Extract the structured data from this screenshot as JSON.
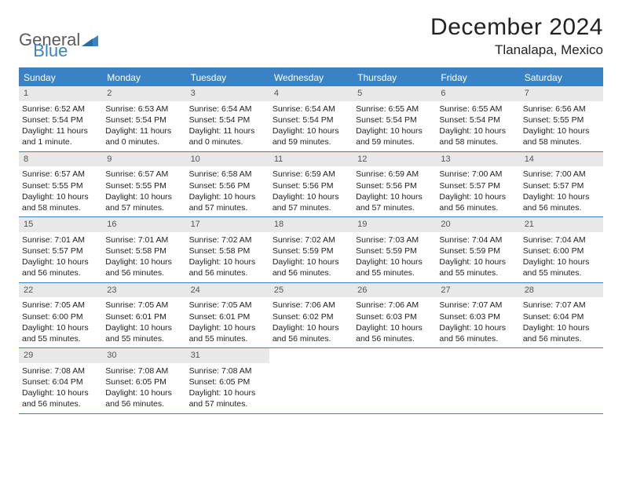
{
  "logo": {
    "word1": "General",
    "word2": "Blue"
  },
  "title": "December 2024",
  "location": "Tlanalapa, Mexico",
  "colors": {
    "accent": "#3b82c4",
    "daynum_bg": "#e8e8e8",
    "text": "#222222",
    "logo_gray": "#5a5a5a"
  },
  "fonts": {
    "title_size": 30,
    "location_size": 17,
    "weekday_size": 12,
    "cell_size": 10.5
  },
  "weekdays": [
    "Sunday",
    "Monday",
    "Tuesday",
    "Wednesday",
    "Thursday",
    "Friday",
    "Saturday"
  ],
  "days": [
    {
      "n": 1,
      "sunrise": "6:52 AM",
      "sunset": "5:54 PM",
      "daylight": "11 hours and 1 minute."
    },
    {
      "n": 2,
      "sunrise": "6:53 AM",
      "sunset": "5:54 PM",
      "daylight": "11 hours and 0 minutes."
    },
    {
      "n": 3,
      "sunrise": "6:54 AM",
      "sunset": "5:54 PM",
      "daylight": "11 hours and 0 minutes."
    },
    {
      "n": 4,
      "sunrise": "6:54 AM",
      "sunset": "5:54 PM",
      "daylight": "10 hours and 59 minutes."
    },
    {
      "n": 5,
      "sunrise": "6:55 AM",
      "sunset": "5:54 PM",
      "daylight": "10 hours and 59 minutes."
    },
    {
      "n": 6,
      "sunrise": "6:55 AM",
      "sunset": "5:54 PM",
      "daylight": "10 hours and 58 minutes."
    },
    {
      "n": 7,
      "sunrise": "6:56 AM",
      "sunset": "5:55 PM",
      "daylight": "10 hours and 58 minutes."
    },
    {
      "n": 8,
      "sunrise": "6:57 AM",
      "sunset": "5:55 PM",
      "daylight": "10 hours and 58 minutes."
    },
    {
      "n": 9,
      "sunrise": "6:57 AM",
      "sunset": "5:55 PM",
      "daylight": "10 hours and 57 minutes."
    },
    {
      "n": 10,
      "sunrise": "6:58 AM",
      "sunset": "5:56 PM",
      "daylight": "10 hours and 57 minutes."
    },
    {
      "n": 11,
      "sunrise": "6:59 AM",
      "sunset": "5:56 PM",
      "daylight": "10 hours and 57 minutes."
    },
    {
      "n": 12,
      "sunrise": "6:59 AM",
      "sunset": "5:56 PM",
      "daylight": "10 hours and 57 minutes."
    },
    {
      "n": 13,
      "sunrise": "7:00 AM",
      "sunset": "5:57 PM",
      "daylight": "10 hours and 56 minutes."
    },
    {
      "n": 14,
      "sunrise": "7:00 AM",
      "sunset": "5:57 PM",
      "daylight": "10 hours and 56 minutes."
    },
    {
      "n": 15,
      "sunrise": "7:01 AM",
      "sunset": "5:57 PM",
      "daylight": "10 hours and 56 minutes."
    },
    {
      "n": 16,
      "sunrise": "7:01 AM",
      "sunset": "5:58 PM",
      "daylight": "10 hours and 56 minutes."
    },
    {
      "n": 17,
      "sunrise": "7:02 AM",
      "sunset": "5:58 PM",
      "daylight": "10 hours and 56 minutes."
    },
    {
      "n": 18,
      "sunrise": "7:02 AM",
      "sunset": "5:59 PM",
      "daylight": "10 hours and 56 minutes."
    },
    {
      "n": 19,
      "sunrise": "7:03 AM",
      "sunset": "5:59 PM",
      "daylight": "10 hours and 55 minutes."
    },
    {
      "n": 20,
      "sunrise": "7:04 AM",
      "sunset": "5:59 PM",
      "daylight": "10 hours and 55 minutes."
    },
    {
      "n": 21,
      "sunrise": "7:04 AM",
      "sunset": "6:00 PM",
      "daylight": "10 hours and 55 minutes."
    },
    {
      "n": 22,
      "sunrise": "7:05 AM",
      "sunset": "6:00 PM",
      "daylight": "10 hours and 55 minutes."
    },
    {
      "n": 23,
      "sunrise": "7:05 AM",
      "sunset": "6:01 PM",
      "daylight": "10 hours and 55 minutes."
    },
    {
      "n": 24,
      "sunrise": "7:05 AM",
      "sunset": "6:01 PM",
      "daylight": "10 hours and 55 minutes."
    },
    {
      "n": 25,
      "sunrise": "7:06 AM",
      "sunset": "6:02 PM",
      "daylight": "10 hours and 56 minutes."
    },
    {
      "n": 26,
      "sunrise": "7:06 AM",
      "sunset": "6:03 PM",
      "daylight": "10 hours and 56 minutes."
    },
    {
      "n": 27,
      "sunrise": "7:07 AM",
      "sunset": "6:03 PM",
      "daylight": "10 hours and 56 minutes."
    },
    {
      "n": 28,
      "sunrise": "7:07 AM",
      "sunset": "6:04 PM",
      "daylight": "10 hours and 56 minutes."
    },
    {
      "n": 29,
      "sunrise": "7:08 AM",
      "sunset": "6:04 PM",
      "daylight": "10 hours and 56 minutes."
    },
    {
      "n": 30,
      "sunrise": "7:08 AM",
      "sunset": "6:05 PM",
      "daylight": "10 hours and 56 minutes."
    },
    {
      "n": 31,
      "sunrise": "7:08 AM",
      "sunset": "6:05 PM",
      "daylight": "10 hours and 57 minutes."
    }
  ],
  "labels": {
    "sunrise": "Sunrise:",
    "sunset": "Sunset:",
    "daylight": "Daylight:"
  },
  "layout": {
    "first_weekday_index": 0,
    "cols": 7,
    "rows": 5
  }
}
